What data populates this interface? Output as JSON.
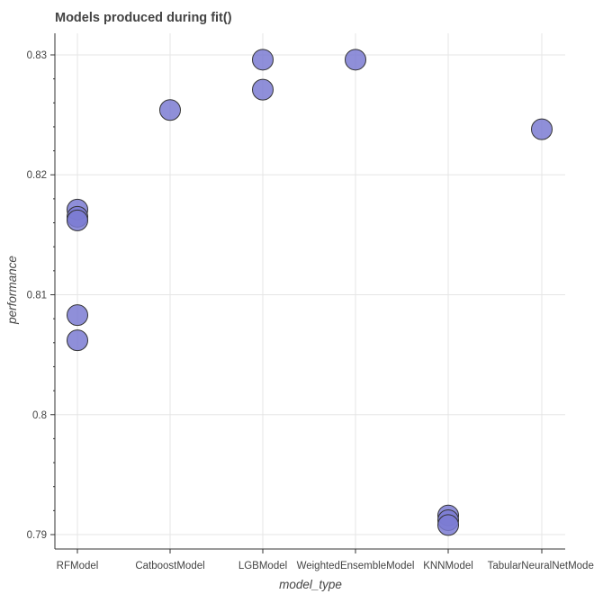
{
  "chart_data": {
    "type": "scatter",
    "title": "Models produced during fit()",
    "xlabel": "model_type",
    "ylabel": "performance",
    "categories": [
      "RFModel",
      "CatboostModel",
      "LGBModel",
      "WeightedEnsembleModel",
      "KNNModel",
      "TabularNeuralNetModel"
    ],
    "ylim": [
      0.7888,
      0.8318
    ],
    "yticks": [
      0.79,
      0.8,
      0.81,
      0.82,
      0.83
    ],
    "ytick_labels": [
      "0.79",
      "0.8",
      "0.81",
      "0.82",
      "0.83"
    ],
    "grid": true,
    "points": [
      {
        "x": "RFModel",
        "y": 0.8171
      },
      {
        "x": "RFModel",
        "y": 0.8165
      },
      {
        "x": "RFModel",
        "y": 0.8162
      },
      {
        "x": "RFModel",
        "y": 0.8083
      },
      {
        "x": "RFModel",
        "y": 0.8062
      },
      {
        "x": "CatboostModel",
        "y": 0.8254
      },
      {
        "x": "LGBModel",
        "y": 0.8296
      },
      {
        "x": "LGBModel",
        "y": 0.8271
      },
      {
        "x": "WeightedEnsembleModel",
        "y": 0.8296
      },
      {
        "x": "KNNModel",
        "y": 0.7916
      },
      {
        "x": "KNNModel",
        "y": 0.7912
      },
      {
        "x": "KNNModel",
        "y": 0.7908
      },
      {
        "x": "TabularNeuralNetModel",
        "y": 0.8238
      }
    ],
    "marker_color": "#7b7bd2"
  }
}
